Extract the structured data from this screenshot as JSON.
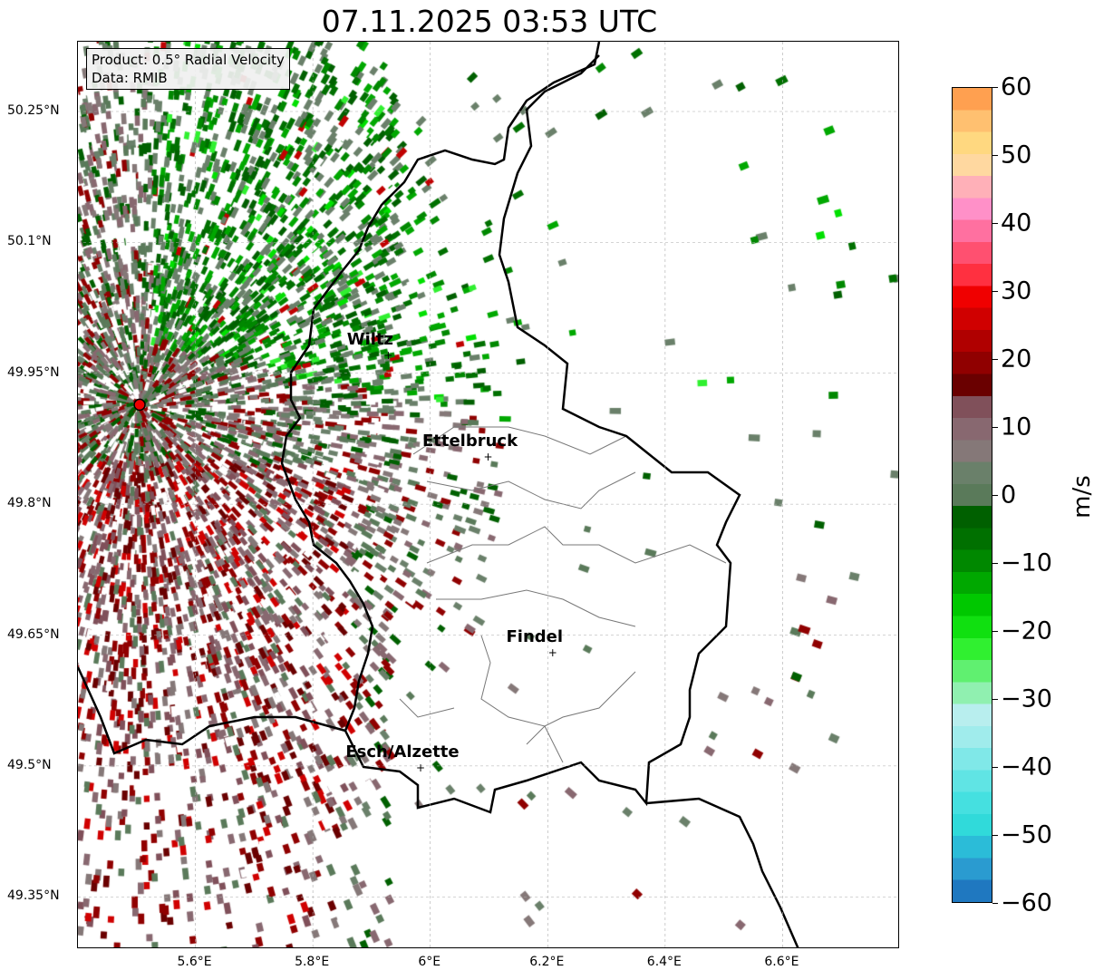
{
  "title": "07.11.2025 03:53 UTC",
  "info": {
    "product": "Product: 0.5° Radial Velocity",
    "data": "Data: RMIB"
  },
  "map": {
    "lon_range": [
      5.4,
      6.8
    ],
    "lat_range": [
      49.29,
      50.33
    ],
    "x_ticks": [
      {
        "v": 5.6,
        "l": "5.6°E"
      },
      {
        "v": 5.8,
        "l": "5.8°E"
      },
      {
        "v": 6.0,
        "l": "6°E"
      },
      {
        "v": 6.2,
        "l": "6.2°E"
      },
      {
        "v": 6.4,
        "l": "6.4°E"
      },
      {
        "v": 6.6,
        "l": "6.6°E"
      }
    ],
    "y_ticks": [
      {
        "v": 50.25,
        "l": "50.25°N"
      },
      {
        "v": 50.1,
        "l": "50.1°N"
      },
      {
        "v": 49.95,
        "l": "49.95°N"
      },
      {
        "v": 49.8,
        "l": "49.8°N"
      },
      {
        "v": 49.65,
        "l": "49.65°N"
      },
      {
        "v": 49.5,
        "l": "49.5°N"
      },
      {
        "v": 49.35,
        "l": "49.35°N"
      }
    ],
    "radar_site": {
      "lon": 5.505,
      "lat": 49.914
    },
    "cities": [
      {
        "name": "Wiltz",
        "lon": 5.93,
        "lat": 49.97
      },
      {
        "name": "Ettelbruck",
        "lon": 6.1,
        "lat": 49.853
      },
      {
        "name": "Findel",
        "lon": 6.21,
        "lat": 49.629
      },
      {
        "name": "Esch/Alzette",
        "lon": 5.985,
        "lat": 49.497
      }
    ]
  },
  "colorbar": {
    "unit": "m/s",
    "min": -60,
    "max": 60,
    "ticks": [
      "60",
      "50",
      "40",
      "30",
      "20",
      "10",
      "0",
      "−10",
      "−20",
      "−30",
      "−40",
      "−50",
      "−60"
    ],
    "colors": [
      "#1f78c0",
      "#2a9bd0",
      "#2bbcd8",
      "#30dada",
      "#45e0e0",
      "#60e4e4",
      "#80e8e8",
      "#a0ecec",
      "#b8eeee",
      "#90f0b0",
      "#60f070",
      "#30f030",
      "#10e010",
      "#00c800",
      "#00a800",
      "#008800",
      "#007000",
      "#006000",
      "#5a7a5a",
      "#6a806a",
      "#857878",
      "#886870",
      "#80505a",
      "#6a0000",
      "#900000",
      "#b00000",
      "#d00000",
      "#f00000",
      "#ff3040",
      "#ff5070",
      "#ff70a0",
      "#ff90c8",
      "#ffb0b8",
      "#ffd8a0",
      "#ffd880",
      "#ffc070",
      "#ffa050"
    ]
  }
}
